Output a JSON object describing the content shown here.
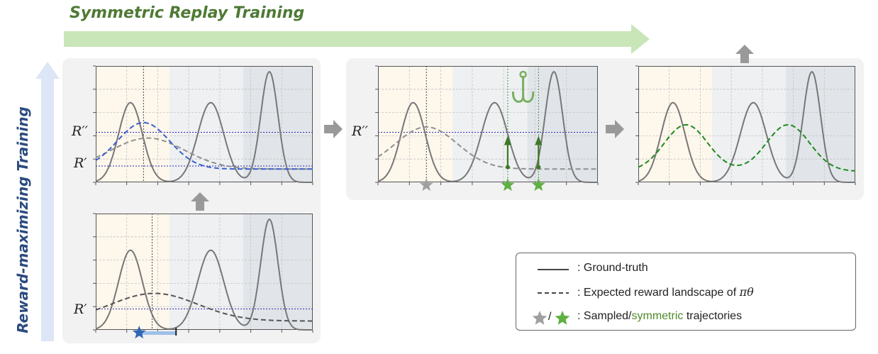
{
  "title_top": "Symmetric Replay Training",
  "title_left": "Reward-maximizing Training",
  "labels": {
    "r_double": "R′′",
    "r_single": "R′"
  },
  "legend": {
    "ground_truth": ": Ground-truth",
    "expected_prefix": ": Expected reward landscape of ",
    "expected_math": "πθ",
    "sampled_prefix": ": Sampled/",
    "sampled_green": "symmetric",
    "sampled_suffix": " trajectories",
    "slash": "/"
  },
  "colors": {
    "ground_truth": "#777777",
    "expected": "#555555",
    "blue_dash": "#3b5fd0",
    "green_dash": "#1e8a1e",
    "threshold": "#2a2ab0",
    "star_gray": "#a0a0a0",
    "star_green": "#5fb042",
    "star_blue": "#2f67b5",
    "arrow_green_light": "#c8e6b8",
    "arrow_blue_light": "#dde6f6"
  },
  "icons": [
    "fishing-hook-icon",
    "star-icon",
    "up-arrow-icon",
    "right-arrow-icon"
  ]
}
